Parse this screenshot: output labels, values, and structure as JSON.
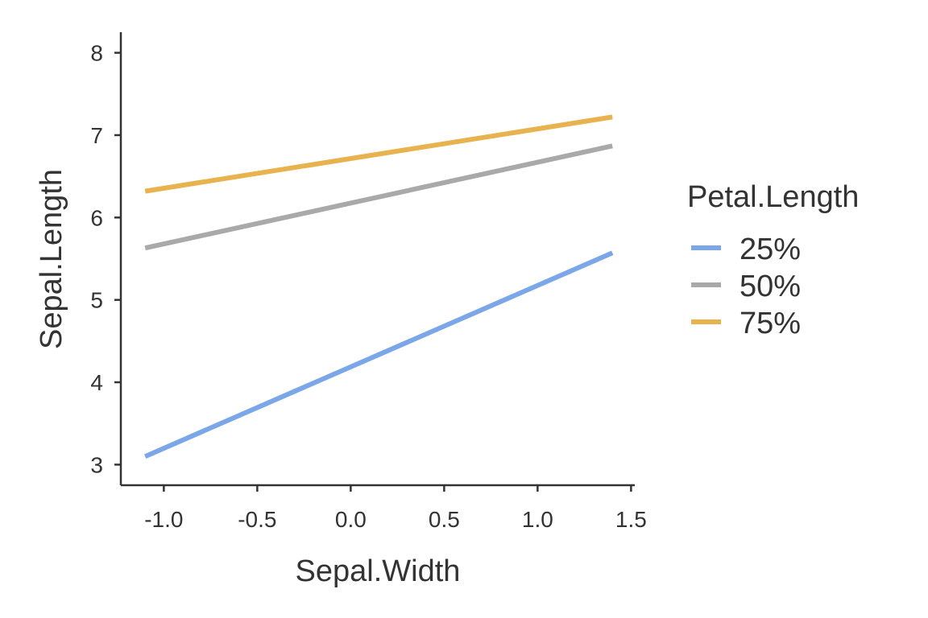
{
  "chart_data": {
    "type": "line",
    "xlabel": "Sepal.Width",
    "ylabel": "Sepal.Length",
    "xlim": [
      -1.23,
      1.52
    ],
    "ylim": [
      2.75,
      8.25
    ],
    "x_ticks": [
      -1.0,
      -0.5,
      0.0,
      0.5,
      1.0,
      1.5
    ],
    "x_tick_labels": [
      "-1.0",
      "-0.5",
      "0.0",
      "0.5",
      "1.0",
      "1.5"
    ],
    "y_ticks": [
      3,
      4,
      5,
      6,
      7,
      8
    ],
    "y_tick_labels": [
      "3",
      "4",
      "5",
      "6",
      "7",
      "8"
    ],
    "grid": false,
    "legend": {
      "title": "Petal.Length",
      "placement": "right"
    },
    "series": [
      {
        "name": "25%",
        "color": "#7ba7e8",
        "x": [
          -1.1,
          1.4
        ],
        "y": [
          3.1,
          5.57
        ]
      },
      {
        "name": "50%",
        "color": "#a9a9a9",
        "x": [
          -1.1,
          1.4
        ],
        "y": [
          5.63,
          6.87
        ]
      },
      {
        "name": "75%",
        "color": "#e8b34f",
        "x": [
          -1.1,
          1.4
        ],
        "y": [
          6.32,
          7.22
        ]
      }
    ]
  }
}
